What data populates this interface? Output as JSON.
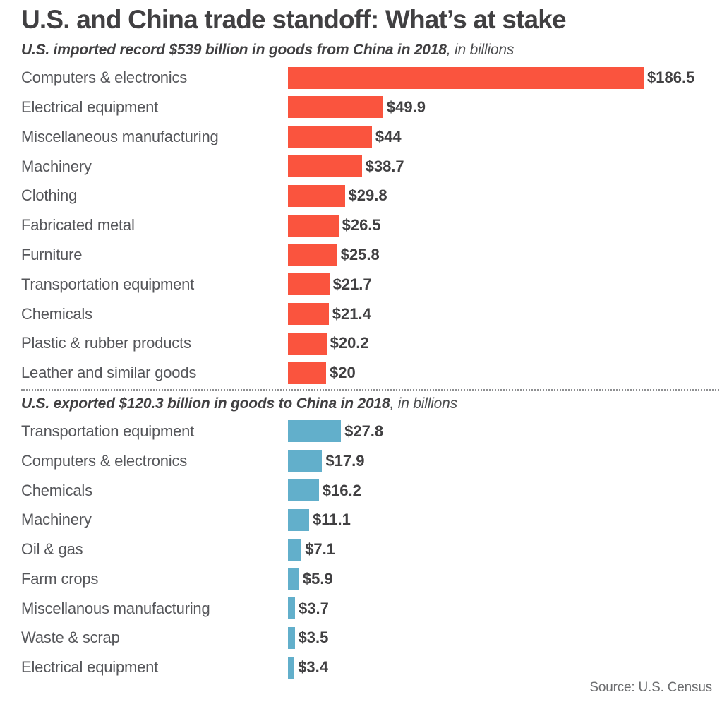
{
  "title": "U.S. and China trade standoff: What’s at stake",
  "source": "Source: U.S. Census",
  "chart_data": [
    {
      "type": "bar",
      "orientation": "horizontal",
      "title": "U.S. imported record $539 billion in goods from China in 2018",
      "subtitle_bold": "U.S. imported record $539 billion in goods from China in 2018",
      "subtitle_rest": ", in billions",
      "units": "billions USD",
      "color": "#fa543e",
      "xlim": [
        0,
        186.5
      ],
      "grid": false,
      "legend": "none",
      "categories": [
        "Computers & electronics",
        "Electrical equipment",
        "Miscellaneous manufacturing",
        "Machinery",
        "Clothing",
        "Fabricated metal",
        "Furniture",
        "Transportation equipment",
        "Chemicals",
        "Plastic & rubber products",
        "Leather and similar goods"
      ],
      "values": [
        186.5,
        49.9,
        44,
        38.7,
        29.8,
        26.5,
        25.8,
        21.7,
        21.4,
        20.2,
        20
      ],
      "value_labels": [
        "$186.5",
        "$49.9",
        "$44",
        "$38.7",
        "$29.8",
        "$26.5",
        "$25.8",
        "$21.7",
        "$21.4",
        "$20.2",
        "$20"
      ]
    },
    {
      "type": "bar",
      "orientation": "horizontal",
      "title": "U.S. exported $120.3 billion in goods to China in 2018",
      "subtitle_bold": "U.S. exported $120.3 billion in goods to China in 2018",
      "subtitle_rest": ", in billions",
      "units": "billions USD",
      "color": "#62afcb",
      "xlim": [
        0,
        186.5
      ],
      "grid": false,
      "legend": "none",
      "categories": [
        "Transportation equipment",
        "Computers & electronics",
        "Chemicals",
        "Machinery",
        "Oil & gas",
        "Farm crops",
        "Miscellanous manufacturing",
        "Waste & scrap",
        "Electrical equipment"
      ],
      "values": [
        27.8,
        17.9,
        16.2,
        11.1,
        7.1,
        5.9,
        3.7,
        3.5,
        3.4
      ],
      "value_labels": [
        "$27.8",
        "$17.9",
        "$16.2",
        "$11.1",
        "$7.1",
        "$5.9",
        "$3.7",
        "$3.5",
        "$3.4"
      ]
    }
  ]
}
